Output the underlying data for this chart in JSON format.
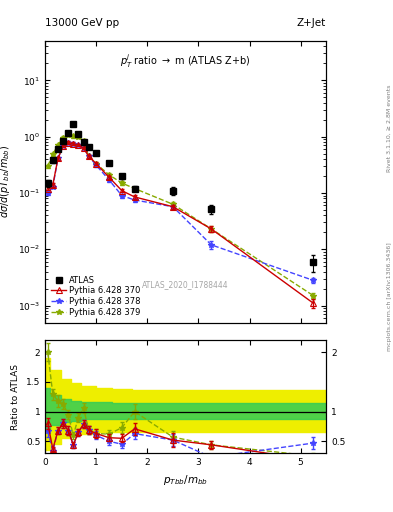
{
  "title_left": "13000 GeV pp",
  "title_right": "Z+Jet",
  "inner_title": "$p_T^j$ ratio $\\rightarrow$ m (ATLAS Z+b)",
  "watermark": "ATLAS_2020_I1788444",
  "right_label_top": "Rivet 3.1.10, ≥ 2.8M events",
  "right_label_bot": "mcplots.cern.ch [arXiv:1306.3436]",
  "ylabel_main": "$d\\sigma/d(pT_{bb}/m_{bb})$",
  "ylabel_ratio": "Ratio to ATLAS",
  "xlabel": "$p_{Tbb}/m_{bb}$",
  "xlim": [
    0,
    5.5
  ],
  "ylim_main": [
    0.0005,
    50
  ],
  "ylim_ratio": [
    0.3,
    2.2
  ],
  "atlas_x": [
    0.05,
    0.15,
    0.25,
    0.35,
    0.45,
    0.55,
    0.65,
    0.75,
    0.85,
    1.0,
    1.25,
    1.5,
    1.75,
    2.5,
    3.25,
    5.25
  ],
  "atlas_y": [
    0.15,
    0.38,
    0.6,
    0.85,
    1.15,
    1.7,
    1.1,
    0.8,
    0.65,
    0.52,
    0.34,
    0.2,
    0.12,
    0.11,
    0.052,
    0.006
  ],
  "atlas_yerr": [
    0.02,
    0.04,
    0.05,
    0.07,
    0.09,
    0.14,
    0.09,
    0.06,
    0.05,
    0.04,
    0.03,
    0.02,
    0.013,
    0.018,
    0.009,
    0.002
  ],
  "py370_x": [
    0.05,
    0.15,
    0.25,
    0.35,
    0.45,
    0.55,
    0.65,
    0.75,
    0.85,
    1.0,
    1.25,
    1.5,
    1.75,
    2.5,
    3.25,
    5.25
  ],
  "py370_y": [
    0.12,
    0.14,
    0.41,
    0.68,
    0.78,
    0.75,
    0.71,
    0.63,
    0.45,
    0.33,
    0.19,
    0.11,
    0.085,
    0.057,
    0.023,
    0.0011
  ],
  "py370_yerr": [
    0.008,
    0.01,
    0.025,
    0.035,
    0.045,
    0.045,
    0.04,
    0.035,
    0.025,
    0.018,
    0.012,
    0.008,
    0.006,
    0.005,
    0.003,
    0.0002
  ],
  "py378_x": [
    0.05,
    0.15,
    0.25,
    0.35,
    0.45,
    0.55,
    0.65,
    0.75,
    0.85,
    1.0,
    1.25,
    1.5,
    1.75,
    2.5,
    3.25,
    5.25
  ],
  "py378_y": [
    0.1,
    0.13,
    0.41,
    0.68,
    0.78,
    0.75,
    0.71,
    0.63,
    0.45,
    0.31,
    0.17,
    0.09,
    0.075,
    0.057,
    0.012,
    0.0028
  ],
  "py378_yerr": [
    0.007,
    0.009,
    0.025,
    0.035,
    0.045,
    0.045,
    0.04,
    0.035,
    0.025,
    0.018,
    0.011,
    0.007,
    0.005,
    0.005,
    0.002,
    0.0003
  ],
  "py379_x": [
    0.05,
    0.15,
    0.25,
    0.35,
    0.45,
    0.55,
    0.65,
    0.75,
    0.85,
    1.0,
    1.25,
    1.5,
    1.75,
    2.5,
    3.25,
    5.25
  ],
  "py379_y": [
    0.3,
    0.49,
    0.71,
    0.96,
    1.09,
    1.02,
    0.99,
    0.85,
    0.45,
    0.33,
    0.21,
    0.15,
    0.12,
    0.063,
    0.023,
    0.0015
  ],
  "py379_yerr": [
    0.018,
    0.028,
    0.045,
    0.06,
    0.065,
    0.065,
    0.06,
    0.055,
    0.028,
    0.02,
    0.015,
    0.011,
    0.009,
    0.006,
    0.003,
    0.0002
  ],
  "ratio370_y": [
    0.8,
    0.37,
    0.68,
    0.8,
    0.68,
    0.44,
    0.65,
    0.79,
    0.69,
    0.63,
    0.56,
    0.55,
    0.71,
    0.52,
    0.44,
    0.18
  ],
  "ratio370_yerr": [
    0.1,
    0.04,
    0.06,
    0.07,
    0.07,
    0.05,
    0.06,
    0.07,
    0.07,
    0.07,
    0.06,
    0.07,
    0.1,
    0.12,
    0.07,
    0.04
  ],
  "ratio378_y": [
    0.67,
    0.34,
    0.68,
    0.8,
    0.68,
    0.44,
    0.65,
    0.79,
    0.69,
    0.6,
    0.5,
    0.45,
    0.63,
    0.52,
    0.23,
    0.47
  ],
  "ratio378_yerr": [
    0.09,
    0.04,
    0.06,
    0.07,
    0.07,
    0.05,
    0.06,
    0.07,
    0.07,
    0.07,
    0.06,
    0.06,
    0.09,
    0.1,
    0.05,
    0.1
  ],
  "ratio379_y": [
    2.0,
    1.29,
    1.18,
    1.13,
    0.95,
    0.6,
    0.9,
    1.06,
    0.69,
    0.63,
    0.62,
    0.73,
    1.0,
    0.57,
    0.44,
    0.25
  ],
  "ratio379_yerr": [
    0.15,
    0.1,
    0.1,
    0.09,
    0.08,
    0.06,
    0.07,
    0.08,
    0.07,
    0.07,
    0.07,
    0.09,
    0.13,
    0.1,
    0.07,
    0.05
  ],
  "band_edges": [
    0.0,
    0.1,
    0.3,
    0.5,
    0.7,
    1.0,
    1.3,
    1.7,
    2.0,
    2.5,
    3.0,
    4.0,
    5.5
  ],
  "green_lo": [
    0.7,
    0.78,
    0.82,
    0.85,
    0.87,
    0.88,
    0.88,
    0.88,
    0.88,
    0.88,
    0.88,
    0.88,
    0.88
  ],
  "green_hi": [
    1.4,
    1.28,
    1.22,
    1.18,
    1.17,
    1.16,
    1.15,
    1.15,
    1.15,
    1.15,
    1.15,
    1.15,
    1.15
  ],
  "yellow_lo": [
    0.35,
    0.45,
    0.55,
    0.6,
    0.63,
    0.65,
    0.65,
    0.65,
    0.65,
    0.65,
    0.65,
    0.65,
    0.65
  ],
  "yellow_hi": [
    1.9,
    1.7,
    1.55,
    1.48,
    1.44,
    1.4,
    1.38,
    1.37,
    1.37,
    1.37,
    1.37,
    1.37,
    1.37
  ],
  "color_atlas": "#000000",
  "color_py370": "#cc0000",
  "color_py378": "#4444ff",
  "color_py379": "#88aa00",
  "color_green_band": "#33cc55",
  "color_yellow_band": "#eeee00",
  "bg_color": "#ffffff"
}
